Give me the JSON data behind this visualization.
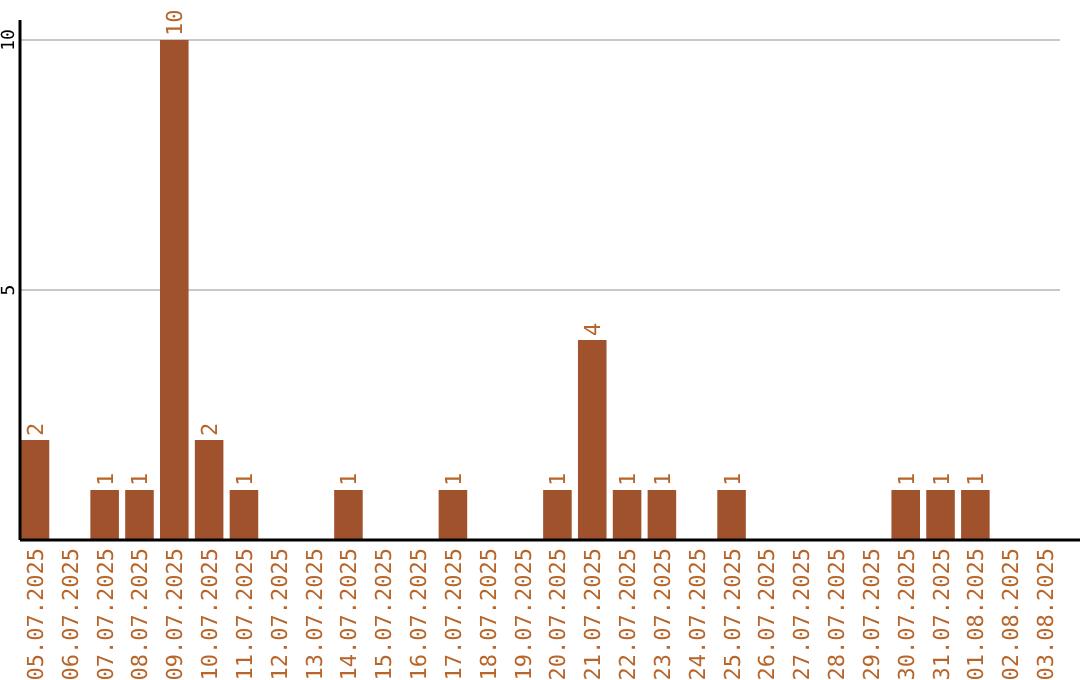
{
  "chart_data": {
    "type": "bar",
    "categories": [
      "05.07.2025",
      "06.07.2025",
      "07.07.2025",
      "08.07.2025",
      "09.07.2025",
      "10.07.2025",
      "11.07.2025",
      "12.07.2025",
      "13.07.2025",
      "14.07.2025",
      "15.07.2025",
      "16.07.2025",
      "17.07.2025",
      "18.07.2025",
      "19.07.2025",
      "20.07.2025",
      "21.07.2025",
      "22.07.2025",
      "23.07.2025",
      "24.07.2025",
      "25.07.2025",
      "26.07.2025",
      "27.07.2025",
      "28.07.2025",
      "29.07.2025",
      "30.07.2025",
      "31.07.2025",
      "01.08.2025",
      "02.08.2025",
      "03.08.2025"
    ],
    "values": [
      2,
      0,
      1,
      1,
      10,
      2,
      1,
      0,
      0,
      1,
      0,
      0,
      1,
      0,
      0,
      1,
      4,
      1,
      1,
      0,
      1,
      0,
      0,
      0,
      0,
      1,
      1,
      1,
      0,
      0
    ],
    "value_labels": [
      "2",
      null,
      "1",
      "1",
      "10",
      "2",
      "1",
      null,
      null,
      "1",
      null,
      null,
      "1",
      null,
      null,
      "1",
      "4",
      "1",
      "1",
      null,
      "1",
      null,
      null,
      null,
      null,
      "1",
      "1",
      "1",
      null,
      null
    ],
    "color": "#a0522d",
    "ylim": [
      0,
      10.4
    ],
    "yticks": [
      5,
      10
    ],
    "grid": "y"
  }
}
